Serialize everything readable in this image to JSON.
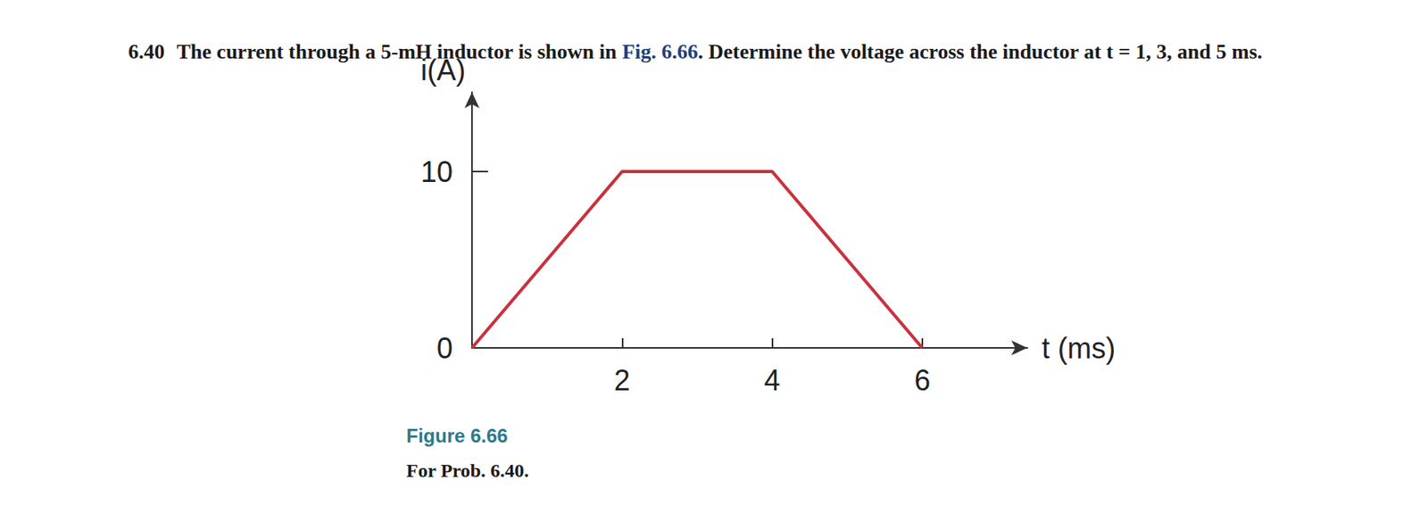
{
  "problem": {
    "number": "6.40",
    "text_before": "The current through a 5-mH inductor is shown in ",
    "figure_ref": "Fig. 6.66",
    "text_after": ". Determine the voltage across the inductor at t = 1, 3, and 5 ms."
  },
  "caption": {
    "label": "Figure 6.66",
    "text": "For Prob. 6.40."
  },
  "chart_data": {
    "type": "line",
    "x_label": "t (ms)",
    "y_label": "i(A)",
    "x": [
      0,
      2,
      4,
      6
    ],
    "values": [
      0,
      10,
      10,
      0
    ],
    "color": "#c8323c",
    "xlim": [
      0,
      7.4
    ],
    "xticks": [
      2,
      4,
      6
    ],
    "ylim": [
      0,
      14.5
    ],
    "yticks": [
      0,
      10
    ],
    "grid": false
  }
}
